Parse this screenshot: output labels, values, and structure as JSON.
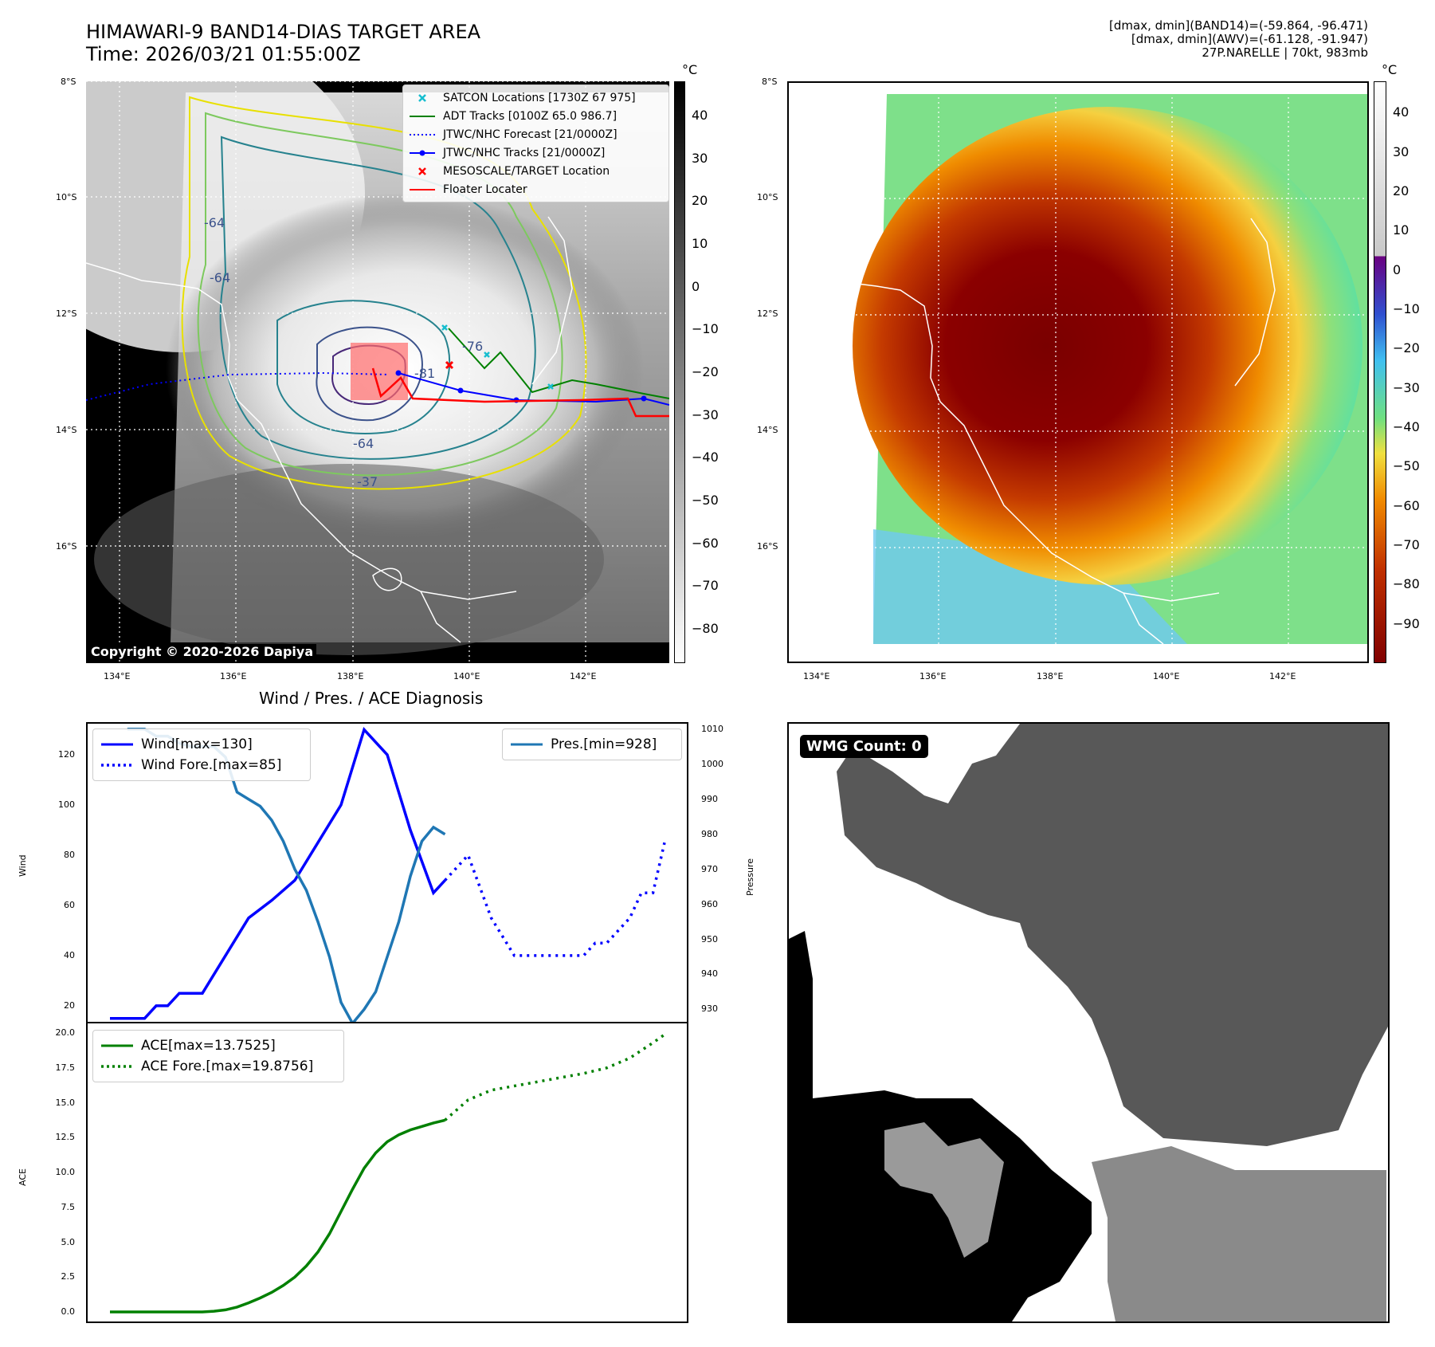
{
  "header": {
    "title_line1": "HIMAWARI-9 BAND14-DIAS TARGET AREA",
    "title_line2": "Time: 2026/03/21 01:55:00Z",
    "meta_line1": "[dmax, dmin](BAND14)=(-59.864, -96.471)",
    "meta_line2": "[dmax, dmin](AWV)=(-61.128, -91.947)",
    "meta_line3": "27P.NARELLE | 70kt, 983mb"
  },
  "map": {
    "lat_labels": [
      "8°S",
      "10°S",
      "12°S",
      "14°S",
      "16°S"
    ],
    "lon_labels": [
      "134°E",
      "136°E",
      "138°E",
      "140°E",
      "142°E"
    ],
    "contour_labels": [
      "-64",
      "-76",
      "-81",
      "-64",
      "-37",
      "-64"
    ],
    "copyright": "Copyright © 2020-2026 Dapiya",
    "legend": [
      {
        "label": "SATCON Locations [1730Z 67 975]",
        "symbol": "x-marker",
        "color": "#17becf"
      },
      {
        "label": "ADT Tracks [0100Z 65.0 986.7]",
        "symbol": "solid-line",
        "color": "#008000"
      },
      {
        "label": "JTWC/NHC Forecast [21/0000Z]",
        "symbol": "dotted-line",
        "color": "#0000ff"
      },
      {
        "label": "JTWC/NHC Tracks [21/0000Z]",
        "symbol": "line-dot",
        "color": "#0000ff"
      },
      {
        "label": "MESOSCALE/TARGET Location",
        "symbol": "x-marker",
        "color": "#ff0000"
      },
      {
        "label": "Floater Locater",
        "symbol": "solid-line",
        "color": "#ff0000"
      }
    ]
  },
  "colorbar_gray": {
    "unit": "°C",
    "ticks": [
      "40",
      "30",
      "20",
      "10",
      "0",
      "−10",
      "−20",
      "−30",
      "−40",
      "−50",
      "−60",
      "−70",
      "−80"
    ]
  },
  "colorbar_color": {
    "unit": "°C",
    "ticks": [
      "40",
      "30",
      "20",
      "10",
      "0",
      "−10",
      "−20",
      "−30",
      "−40",
      "−50",
      "−60",
      "−70",
      "−80",
      "−90"
    ]
  },
  "wmg": {
    "badge": "WMG Count: 0"
  },
  "chart_data": [
    {
      "type": "line",
      "title": "Wind / Pres. / ACE Diagnosis",
      "xlabel": "",
      "ylabel": "Wind",
      "ylabel_right": "Pressure",
      "ylim": [
        13,
        133
      ],
      "ylim_right": [
        926,
        1012
      ],
      "yticks": [
        "20",
        "40",
        "60",
        "80",
        "100",
        "120"
      ],
      "yticks_right": [
        "930",
        "940",
        "950",
        "960",
        "970",
        "980",
        "990",
        "1000",
        "1010"
      ],
      "x": [
        0,
        1,
        2,
        3,
        4,
        5,
        6,
        7,
        8,
        9,
        10,
        11,
        12,
        13,
        14,
        15,
        16,
        17,
        18,
        19,
        20,
        21,
        22,
        23,
        24,
        25,
        26,
        27,
        28,
        29,
        30,
        31,
        32,
        33,
        34,
        35,
        36,
        37,
        38,
        39,
        40
      ],
      "series": [
        {
          "name": "Wind[max=130]",
          "axis": "left",
          "style": "solid",
          "color": "#0000ff",
          "x": [
            0,
            1,
            2,
            3,
            4,
            5,
            6,
            7,
            8,
            10,
            12,
            14,
            16,
            18,
            20,
            22,
            24,
            26,
            28,
            29
          ],
          "values": [
            15,
            15,
            15,
            15,
            20,
            20,
            25,
            25,
            25,
            40,
            55,
            62,
            70,
            85,
            100,
            130,
            120,
            90,
            65,
            70
          ]
        },
        {
          "name": "Wind Fore.[max=85]",
          "axis": "left",
          "style": "dotted",
          "color": "#0000ff",
          "x": [
            29,
            31,
            33,
            35,
            37,
            39,
            41,
            42,
            43,
            44,
            45,
            46,
            47,
            48
          ],
          "values": [
            70,
            80,
            55,
            40,
            40,
            40,
            40,
            45,
            45,
            50,
            55,
            65,
            65,
            85
          ]
        },
        {
          "name": "Pres.[min=928]",
          "axis": "right",
          "style": "solid",
          "color": "#1f77b4",
          "x": [
            1.5,
            2,
            3,
            4,
            5,
            6,
            7,
            8,
            9,
            10,
            11,
            12,
            13,
            14,
            15,
            16,
            17,
            18,
            19,
            20,
            21,
            22,
            23,
            24,
            25,
            26,
            27,
            28,
            29
          ],
          "values": [
            1010,
            1010,
            1010,
            1008,
            1008,
            1006,
            1005,
            1005,
            1005,
            1002,
            992,
            990,
            988,
            984,
            978,
            970,
            964,
            955,
            945,
            932,
            926,
            930,
            935,
            945,
            955,
            968,
            978,
            982,
            980
          ]
        }
      ]
    },
    {
      "type": "line",
      "title": "",
      "xlabel": "",
      "ylabel": "ACE",
      "ylim": [
        -0.8,
        20.8
      ],
      "yticks": [
        "0.0",
        "2.5",
        "5.0",
        "7.5",
        "10.0",
        "12.5",
        "15.0",
        "17.5",
        "20.0"
      ],
      "series": [
        {
          "name": "ACE[max=13.7525]",
          "style": "solid",
          "color": "#008000",
          "x": [
            0,
            2,
            4,
            6,
            7,
            8,
            9,
            10,
            11,
            12,
            13,
            14,
            15,
            16,
            17,
            18,
            19,
            20,
            21,
            22,
            23,
            24,
            25,
            26,
            27,
            28,
            29
          ],
          "values": [
            0,
            0,
            0,
            0,
            0,
            0,
            0.05,
            0.15,
            0.35,
            0.65,
            1.0,
            1.4,
            1.9,
            2.5,
            3.3,
            4.3,
            5.6,
            7.2,
            8.8,
            10.3,
            11.4,
            12.2,
            12.7,
            13.05,
            13.3,
            13.55,
            13.75
          ]
        },
        {
          "name": "ACE Fore.[max=19.8756]",
          "style": "dotted",
          "color": "#008000",
          "x": [
            29,
            31,
            33,
            35,
            37,
            39,
            41,
            43,
            45,
            47,
            48
          ],
          "values": [
            13.75,
            15.2,
            15.9,
            16.2,
            16.5,
            16.8,
            17.1,
            17.5,
            18.2,
            19.3,
            19.88
          ]
        }
      ]
    }
  ]
}
